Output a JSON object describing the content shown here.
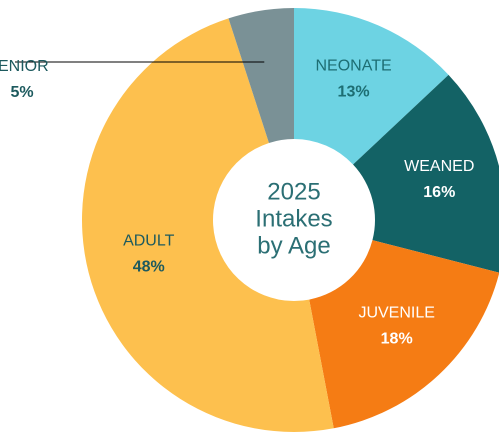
{
  "chart_data": {
    "type": "donut",
    "title_lines": [
      "2025",
      "Intakes",
      "by Age"
    ],
    "categories": [
      "NEONATE",
      "WEANED",
      "JUVENILE",
      "ADULT",
      "SENIOR"
    ],
    "values": [
      13,
      16,
      18,
      48,
      5
    ],
    "value_labels": [
      "13%",
      "16%",
      "18%",
      "48%",
      "5%"
    ],
    "colors": [
      "#6dd3e3",
      "#136265",
      "#f57c14",
      "#fdc04e",
      "#7a9196"
    ],
    "label_colors": [
      "#1d6e73",
      "#ffffff",
      "#ffffff",
      "#1d5a5e",
      "#1d5a5e"
    ]
  }
}
